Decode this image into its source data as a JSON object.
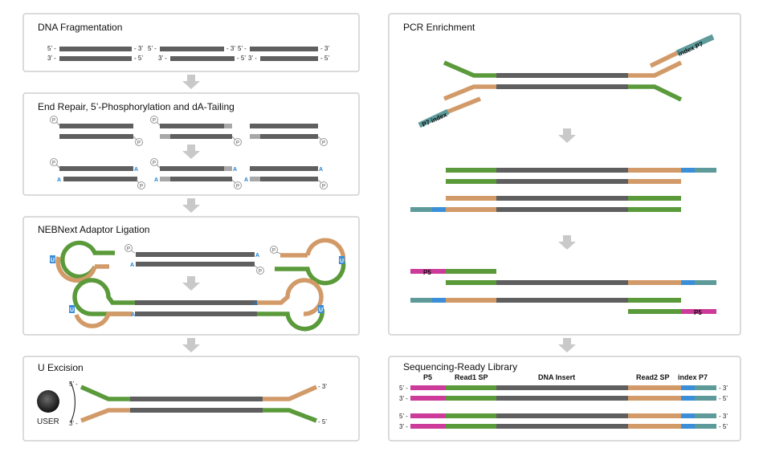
{
  "colors": {
    "insert": "#5f5f5f",
    "adaptor_tan": "#d29a68",
    "adaptor_green": "#5a9a3a",
    "index_blue": "#3a8fd8",
    "p7_teal": "#5e9a9a",
    "p5_magenta": "#cc3a9a",
    "arrow": "#c9c9c9",
    "panel_border": "#cfcfcf"
  },
  "panels": {
    "fragmentation": {
      "title": "DNA Fragmentation"
    },
    "end_repair": {
      "title": "End Repair, 5’-Phosphorylation and dA-Tailing"
    },
    "ligation": {
      "title": "NEBNext Adaptor Ligation"
    },
    "u_excision": {
      "title": "U Excision"
    },
    "pcr": {
      "title": "PCR Enrichment"
    },
    "library": {
      "title": "Sequencing-Ready Library"
    }
  },
  "strand_ends": {
    "five_prime_left": "5’ -",
    "three_prime_right": "- 3’",
    "three_prime_left": "3’ -",
    "five_prime_right": "- 5’"
  },
  "glyphs": {
    "phosphate": "P",
    "a_tail": "A",
    "uracil": "U"
  },
  "user_enzyme": {
    "label": "USER"
  },
  "pcr_labels": {
    "p7_index": "P7 index",
    "index_p7_rot": "index P7",
    "p5": "P5"
  },
  "library_labels": {
    "p5": "P5",
    "read1": "Read1 SP",
    "insert": "DNA Insert",
    "read2": "Read2 SP",
    "index_p7": "index P7"
  }
}
